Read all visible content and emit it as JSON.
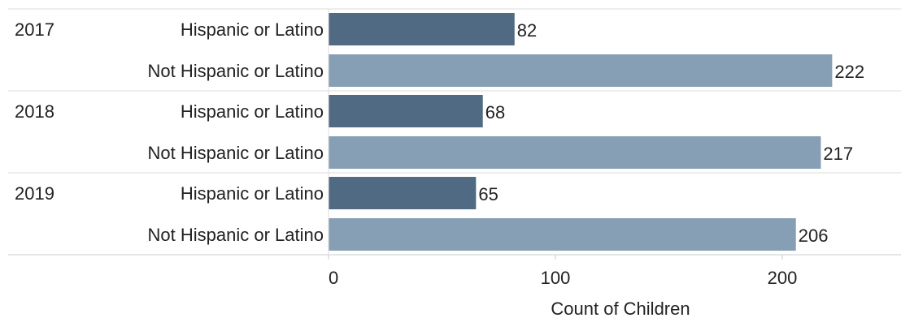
{
  "chart_data": {
    "type": "bar",
    "orientation": "horizontal",
    "title": "",
    "xlabel": "Count of Children",
    "ylabel": "",
    "xlim": [
      0,
      240
    ],
    "x_ticks": [
      0,
      100,
      200
    ],
    "grid": false,
    "legend": "none",
    "groups": [
      {
        "year": "2017",
        "bars": [
          {
            "category": "Hispanic or Latino",
            "value": 82
          },
          {
            "category": "Not Hispanic or Latino",
            "value": 222
          }
        ]
      },
      {
        "year": "2018",
        "bars": [
          {
            "category": "Hispanic or Latino",
            "value": 68
          },
          {
            "category": "Not Hispanic or Latino",
            "value": 217
          }
        ]
      },
      {
        "year": "2019",
        "bars": [
          {
            "category": "Hispanic or Latino",
            "value": 65
          },
          {
            "category": "Not Hispanic or Latino",
            "value": 206
          }
        ]
      }
    ],
    "colors": {
      "Hispanic or Latino": "#4f6a82",
      "Not Hispanic or Latino": "#879fb4"
    }
  }
}
